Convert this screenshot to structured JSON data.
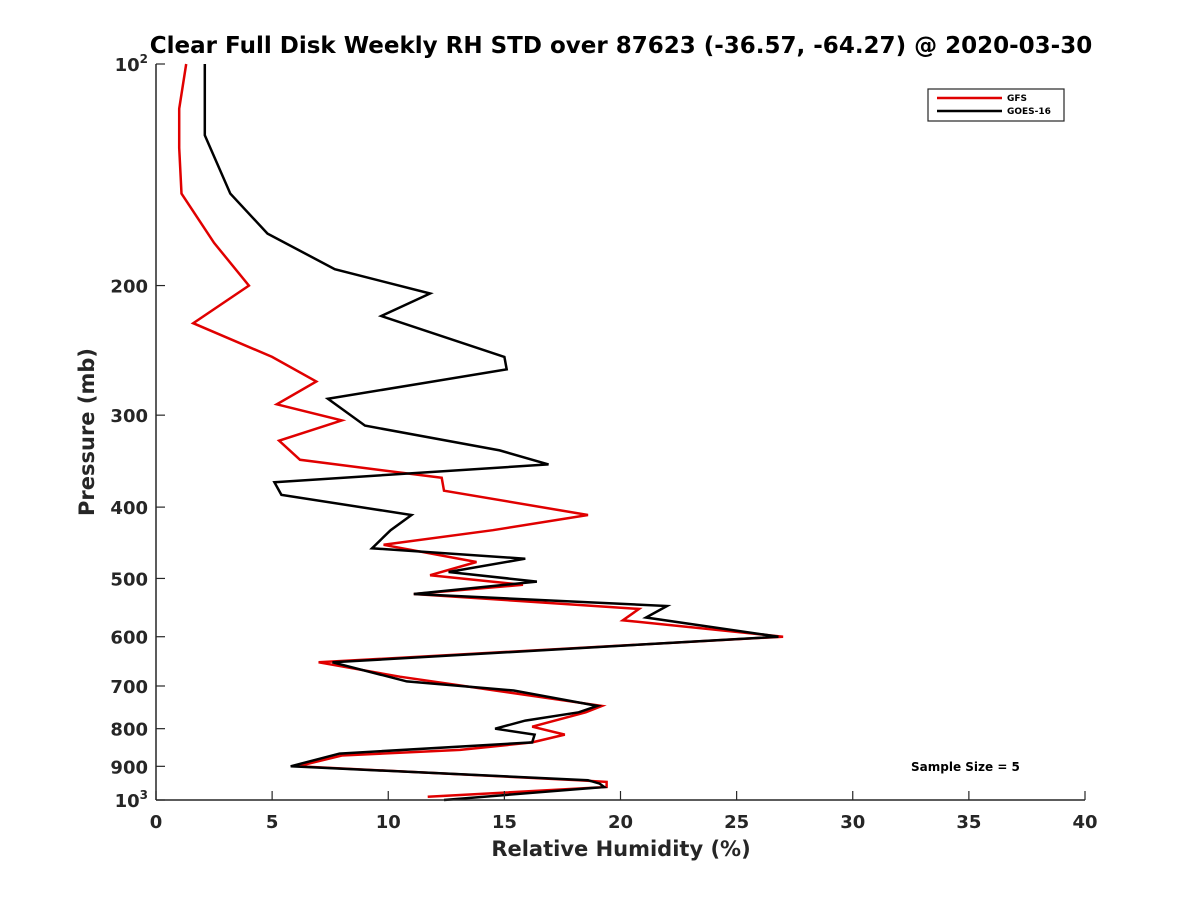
{
  "chart_data": {
    "type": "line",
    "title": "Clear Full Disk Weekly RH STD over 87623 (-36.57, -64.27) @ 2020-03-30",
    "xlabel": "Relative Humidity (%)",
    "ylabel": "Pressure (mb)",
    "xlim": [
      0,
      40
    ],
    "ylim": [
      100,
      1000
    ],
    "yscale": "log",
    "y_reversed": true,
    "grid": false,
    "legend_position": "top-right",
    "x_ticks": [
      "0",
      "5",
      "10",
      "15",
      "20",
      "25",
      "30",
      "35",
      "40"
    ],
    "y_ticks": [
      {
        "value": 100,
        "base": "10",
        "exp": "2"
      },
      {
        "value": 200,
        "label": "200"
      },
      {
        "value": 300,
        "label": "300"
      },
      {
        "value": 400,
        "label": "400"
      },
      {
        "value": 500,
        "label": "500"
      },
      {
        "value": 600,
        "label": "600"
      },
      {
        "value": 700,
        "label": "700"
      },
      {
        "value": 800,
        "label": "800"
      },
      {
        "value": 900,
        "label": "900"
      },
      {
        "value": 1000,
        "base": "10",
        "exp": "3"
      }
    ],
    "annotation": "Sample Size = 5",
    "series": [
      {
        "name": "GFS",
        "color": "#e00000",
        "points": [
          [
            1.3,
            100
          ],
          [
            1.0,
            115
          ],
          [
            1.0,
            130
          ],
          [
            1.1,
            150
          ],
          [
            2.5,
            175
          ],
          [
            4.0,
            200
          ],
          [
            1.6,
            225
          ],
          [
            5.0,
            250
          ],
          [
            6.9,
            270
          ],
          [
            5.2,
            290
          ],
          [
            8.0,
            305
          ],
          [
            5.3,
            325
          ],
          [
            6.2,
            345
          ],
          [
            12.3,
            365
          ],
          [
            12.4,
            380
          ],
          [
            18.6,
            410
          ],
          [
            14.5,
            430
          ],
          [
            9.8,
            450
          ],
          [
            13.8,
            475
          ],
          [
            11.8,
            495
          ],
          [
            15.8,
            510
          ],
          [
            11.1,
            525
          ],
          [
            20.8,
            550
          ],
          [
            20.1,
            570
          ],
          [
            27.0,
            600
          ],
          [
            7.0,
            650
          ],
          [
            10.5,
            680
          ],
          [
            14.6,
            710
          ],
          [
            19.2,
            745
          ],
          [
            18.5,
            760
          ],
          [
            16.2,
            795
          ],
          [
            17.6,
            815
          ],
          [
            16.2,
            835
          ],
          [
            13.1,
            855
          ],
          [
            8.0,
            870
          ],
          [
            6.1,
            900
          ],
          [
            18.2,
            940
          ],
          [
            19.4,
            945
          ],
          [
            19.4,
            960
          ],
          [
            11.7,
            990
          ]
        ]
      },
      {
        "name": "GOES-16",
        "color": "#000000",
        "points": [
          [
            2.1,
            100
          ],
          [
            2.1,
            125
          ],
          [
            3.2,
            150
          ],
          [
            4.8,
            170
          ],
          [
            7.7,
            190
          ],
          [
            11.8,
            205
          ],
          [
            9.7,
            220
          ],
          [
            15.0,
            250
          ],
          [
            15.1,
            260
          ],
          [
            7.4,
            285
          ],
          [
            9.0,
            310
          ],
          [
            14.8,
            335
          ],
          [
            16.9,
            350
          ],
          [
            5.1,
            370
          ],
          [
            5.4,
            385
          ],
          [
            11.0,
            410
          ],
          [
            10.1,
            430
          ],
          [
            9.3,
            455
          ],
          [
            15.9,
            470
          ],
          [
            12.6,
            490
          ],
          [
            16.4,
            505
          ],
          [
            11.1,
            525
          ],
          [
            22.0,
            545
          ],
          [
            21.1,
            565
          ],
          [
            26.8,
            600
          ],
          [
            7.6,
            650
          ],
          [
            10.8,
            690
          ],
          [
            15.4,
            710
          ],
          [
            19.0,
            745
          ],
          [
            18.2,
            760
          ],
          [
            15.9,
            780
          ],
          [
            14.6,
            800
          ],
          [
            16.3,
            815
          ],
          [
            16.2,
            835
          ],
          [
            7.9,
            865
          ],
          [
            5.8,
            900
          ],
          [
            18.6,
            940
          ],
          [
            19.1,
            950
          ],
          [
            19.3,
            960
          ],
          [
            12.4,
            1000
          ]
        ]
      }
    ]
  }
}
